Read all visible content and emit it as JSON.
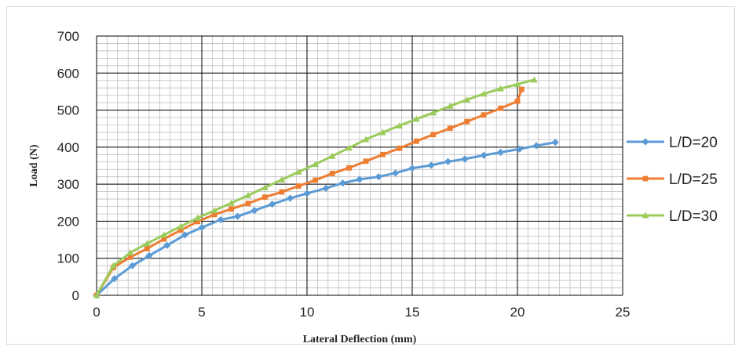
{
  "chart_data": {
    "type": "line",
    "title": "",
    "xlabel": "Lateral Deflection (mm)",
    "ylabel": "Load (N)",
    "xlim": [
      0,
      25
    ],
    "ylim": [
      0,
      700
    ],
    "x_major_ticks": [
      0,
      5,
      10,
      15,
      20,
      25
    ],
    "y_major_ticks": [
      0,
      100,
      200,
      300,
      400,
      500,
      600,
      700
    ],
    "x_minor_step": 0.5,
    "y_minor_step": 20,
    "grid": true,
    "legend_position": "right",
    "series": [
      {
        "name": "L/D=20",
        "color": "#5B9BD5",
        "marker": "diamond",
        "points": [
          [
            0,
            0
          ],
          [
            0.85,
            45
          ],
          [
            1.7,
            80
          ],
          [
            2.5,
            107
          ],
          [
            3.35,
            135
          ],
          [
            4.2,
            163
          ],
          [
            5.0,
            183
          ],
          [
            5.9,
            204
          ],
          [
            6.7,
            213
          ],
          [
            7.5,
            229
          ],
          [
            8.35,
            246
          ],
          [
            9.2,
            262
          ],
          [
            10.0,
            275
          ],
          [
            10.9,
            289
          ],
          [
            11.7,
            303
          ],
          [
            12.5,
            313
          ],
          [
            13.4,
            320
          ],
          [
            14.2,
            330
          ],
          [
            15.0,
            343
          ],
          [
            15.9,
            351
          ],
          [
            16.7,
            361
          ],
          [
            17.5,
            368
          ],
          [
            18.4,
            378
          ],
          [
            19.2,
            386
          ],
          [
            20.1,
            395
          ],
          [
            20.9,
            404
          ],
          [
            21.8,
            413
          ]
        ]
      },
      {
        "name": "L/D=25",
        "color": "#ED7D31",
        "marker": "square",
        "points": [
          [
            0,
            0
          ],
          [
            0.8,
            75
          ],
          [
            1.6,
            103
          ],
          [
            2.4,
            126
          ],
          [
            3.2,
            152
          ],
          [
            4.0,
            176
          ],
          [
            4.8,
            199
          ],
          [
            5.6,
            218
          ],
          [
            6.4,
            233
          ],
          [
            7.2,
            248
          ],
          [
            8.0,
            265
          ],
          [
            8.8,
            279
          ],
          [
            9.6,
            295
          ],
          [
            10.4,
            311
          ],
          [
            11.2,
            329
          ],
          [
            12.0,
            344
          ],
          [
            12.8,
            362
          ],
          [
            13.6,
            380
          ],
          [
            14.4,
            397
          ],
          [
            15.2,
            416
          ],
          [
            16.0,
            434
          ],
          [
            16.8,
            451
          ],
          [
            17.6,
            469
          ],
          [
            18.4,
            487
          ],
          [
            19.2,
            505
          ],
          [
            20.0,
            524
          ],
          [
            20.2,
            556
          ]
        ]
      },
      {
        "name": "L/D=30",
        "color": "#9BCB5B",
        "marker": "triangle",
        "points": [
          [
            0,
            0
          ],
          [
            0.8,
            80
          ],
          [
            1.6,
            115
          ],
          [
            2.4,
            140
          ],
          [
            3.2,
            163
          ],
          [
            4.0,
            186
          ],
          [
            4.8,
            209
          ],
          [
            5.6,
            229
          ],
          [
            6.4,
            249
          ],
          [
            7.2,
            270
          ],
          [
            8.0,
            291
          ],
          [
            8.8,
            312
          ],
          [
            9.6,
            333
          ],
          [
            10.4,
            354
          ],
          [
            11.2,
            376
          ],
          [
            12.0,
            398
          ],
          [
            12.8,
            421
          ],
          [
            13.6,
            440
          ],
          [
            14.4,
            458
          ],
          [
            15.2,
            476
          ],
          [
            16.0,
            493
          ],
          [
            16.8,
            511
          ],
          [
            17.6,
            528
          ],
          [
            18.4,
            544
          ],
          [
            19.2,
            558
          ],
          [
            20.0,
            570
          ],
          [
            20.8,
            582
          ]
        ]
      }
    ]
  }
}
